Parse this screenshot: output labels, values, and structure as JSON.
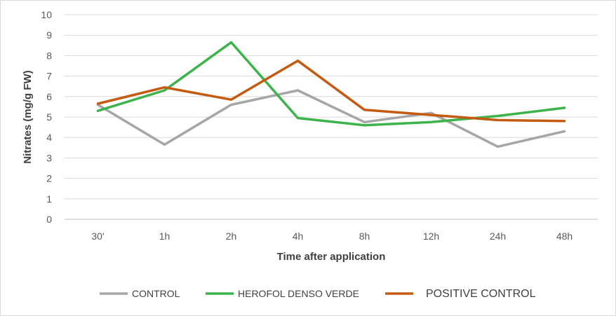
{
  "chart_data": {
    "type": "line",
    "title": "",
    "xlabel": "Time after application",
    "ylabel": "Nitrates (mg/g FW)",
    "categories": [
      "30'",
      "1h",
      "2h",
      "4h",
      "8h",
      "12h",
      "24h",
      "48h"
    ],
    "ylim": [
      0,
      10
    ],
    "yticks": [
      "0",
      "1",
      "2",
      "3",
      "4",
      "5",
      "6",
      "7",
      "8",
      "9",
      "10"
    ],
    "grid": "horizontal",
    "legend_position": "bottom",
    "series": [
      {
        "name": "CONTROL",
        "color": "#a6a6a6",
        "values": [
          5.6,
          3.65,
          5.6,
          6.3,
          4.75,
          5.2,
          3.55,
          4.3
        ]
      },
      {
        "name": "HEROFOL DENSO VERDE",
        "color": "#3cb44b",
        "values": [
          5.3,
          6.3,
          8.65,
          4.95,
          4.6,
          4.75,
          5.05,
          5.45
        ]
      },
      {
        "name": "POSITIVE CONTROL",
        "color": "#c55a11",
        "values": [
          5.65,
          6.45,
          5.85,
          7.75,
          5.35,
          5.1,
          4.85,
          4.8
        ]
      }
    ]
  }
}
